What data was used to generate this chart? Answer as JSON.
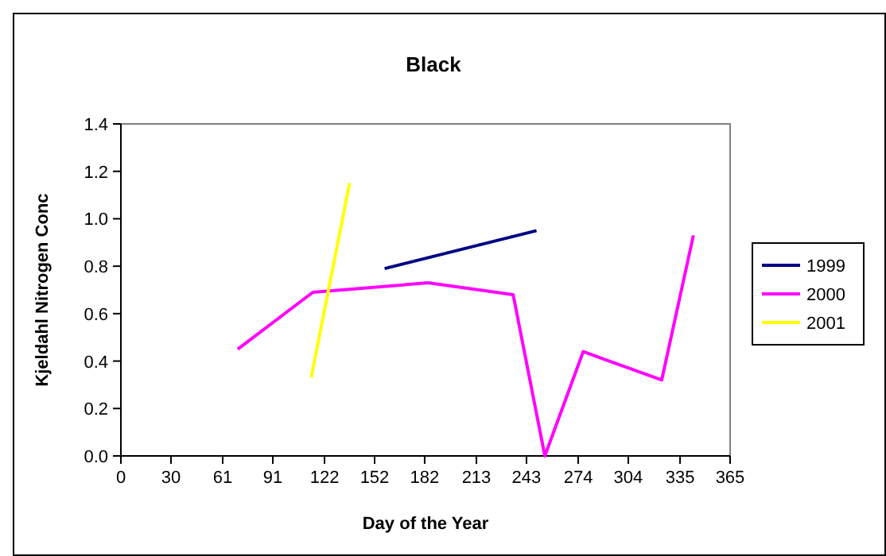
{
  "chart_data": {
    "type": "line",
    "title": "Black",
    "xlabel": "Day of the Year",
    "ylabel": "Kjeldahl Nitrogen Conc",
    "xlim": [
      0,
      365
    ],
    "xticks": [
      0,
      30,
      61,
      91,
      122,
      152,
      182,
      213,
      243,
      274,
      304,
      335,
      365
    ],
    "ylim": [
      0,
      1.4
    ],
    "yticks": [
      {
        "value": 0,
        "label": "0.0"
      },
      {
        "value": 0.2,
        "label": "0.2"
      },
      {
        "value": 0.4,
        "label": "0.4"
      },
      {
        "value": 0.6,
        "label": "0.6"
      },
      {
        "value": 0.8,
        "label": "0.8"
      },
      {
        "value": 1,
        "label": "1.0"
      },
      {
        "value": 1.2,
        "label": "1.2"
      },
      {
        "value": 1.4,
        "label": "1.4"
      }
    ],
    "legend": "right",
    "marker": "none",
    "line_style": "solid",
    "series": [
      {
        "name": "1999",
        "color": "#000080",
        "x": [
          158,
          249
        ],
        "values": [
          0.79,
          0.95
        ]
      },
      {
        "name": "2000",
        "color": "#ff00ff",
        "x": [
          70,
          115,
          150,
          184,
          235,
          254,
          277,
          324,
          343
        ],
        "values": [
          0.45,
          0.69,
          0.71,
          0.73,
          0.68,
          0.0,
          0.44,
          0.32,
          0.93
        ]
      },
      {
        "name": "2001",
        "color": "#ffff00",
        "x": [
          114,
          137
        ],
        "values": [
          0.33,
          1.15
        ]
      }
    ]
  }
}
